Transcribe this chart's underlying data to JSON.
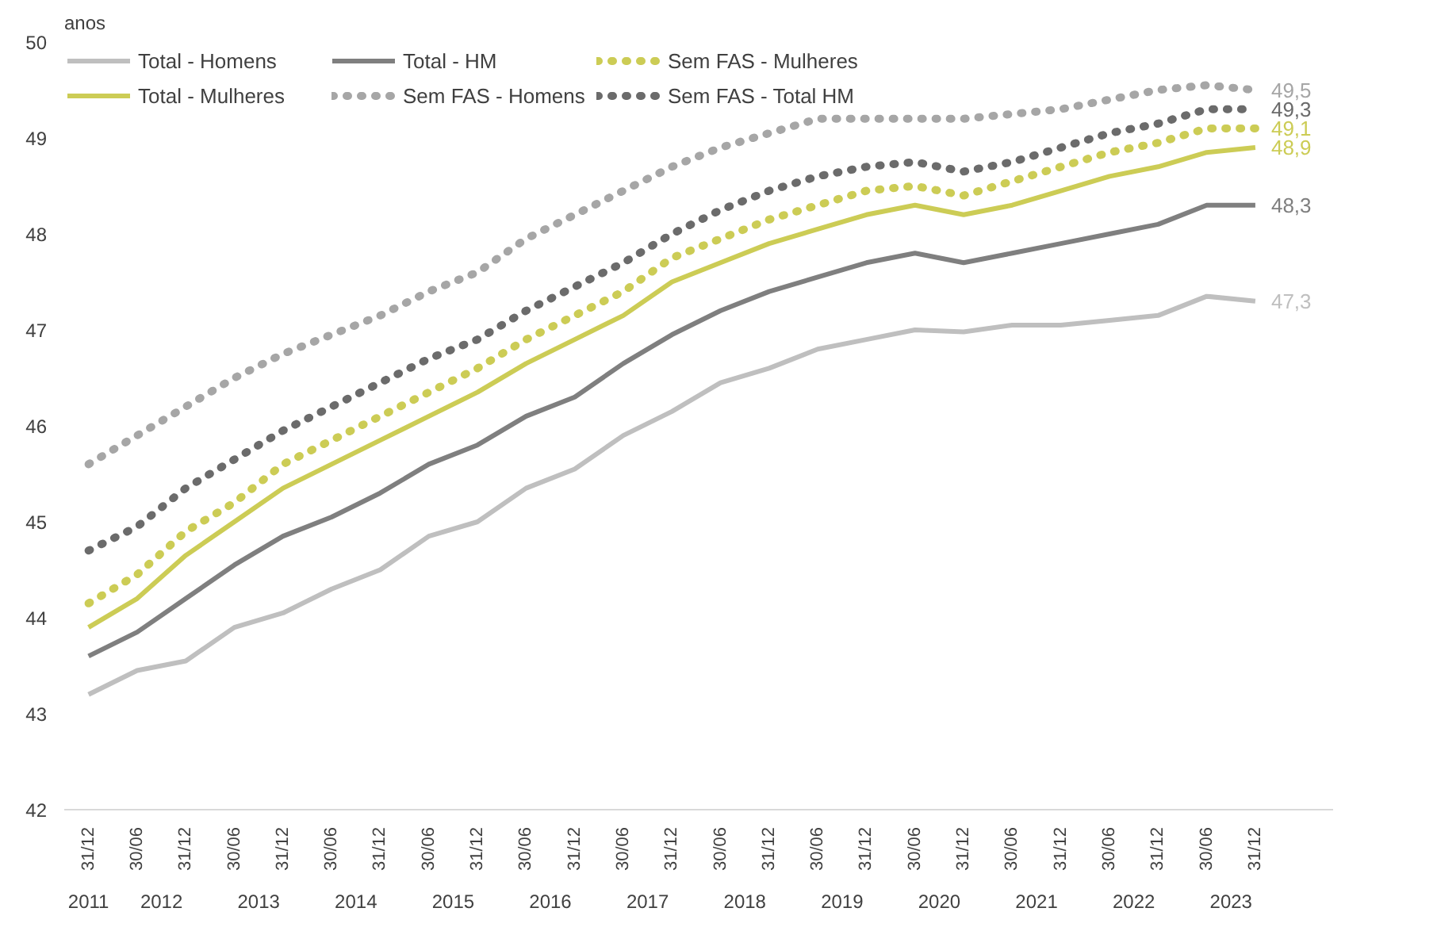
{
  "chart_data": {
    "type": "line",
    "ylabel": "anos",
    "categories": [
      "31/12",
      "30/06",
      "31/12",
      "30/06",
      "31/12",
      "30/06",
      "31/12",
      "30/06",
      "31/12",
      "30/06",
      "31/12",
      "30/06",
      "31/12",
      "30/06",
      "31/12",
      "30/06",
      "31/12",
      "30/06",
      "31/12",
      "30/06",
      "31/12",
      "30/06",
      "31/12",
      "30/06",
      "31/12"
    ],
    "annotations": [
      "2011",
      "2012",
      "2013",
      "2014",
      "2015",
      "2016",
      "2017",
      "2018",
      "2019",
      "2020",
      "2021",
      "2022",
      "2023"
    ],
    "ylim": [
      42,
      50
    ],
    "yticks": [
      42,
      43,
      44,
      45,
      46,
      47,
      48,
      49,
      50
    ],
    "grid": false,
    "legend": "top",
    "marker": "none",
    "series": [
      {
        "name": "Total - Homens",
        "color": "#bfbfbf",
        "line_style": "solid",
        "values": [
          43.2,
          43.45,
          43.55,
          43.9,
          44.05,
          44.3,
          44.5,
          44.85,
          45.0,
          45.35,
          45.55,
          45.9,
          46.15,
          46.45,
          46.6,
          46.8,
          46.9,
          47.0,
          46.98,
          47.05,
          47.05,
          47.1,
          47.15,
          47.35,
          47.3
        ],
        "value_labels": [
          null,
          null,
          null,
          null,
          null,
          null,
          null,
          null,
          null,
          null,
          null,
          null,
          null,
          null,
          null,
          null,
          null,
          null,
          null,
          null,
          null,
          null,
          null,
          null,
          "47,3"
        ]
      },
      {
        "name": "Total - Mulheres",
        "color": "#cccc55",
        "line_style": "solid",
        "values": [
          43.9,
          44.2,
          44.65,
          45.0,
          45.35,
          45.6,
          45.85,
          46.1,
          46.35,
          46.65,
          46.9,
          47.15,
          47.5,
          47.7,
          47.9,
          48.05,
          48.2,
          48.3,
          48.2,
          48.3,
          48.45,
          48.6,
          48.7,
          48.85,
          48.9
        ],
        "value_labels": [
          null,
          null,
          null,
          null,
          null,
          null,
          null,
          null,
          null,
          null,
          null,
          null,
          null,
          null,
          null,
          null,
          null,
          null,
          null,
          null,
          null,
          null,
          null,
          null,
          "48,9"
        ]
      },
      {
        "name": "Total - HM",
        "color": "#7f7f7f",
        "line_style": "solid",
        "values": [
          43.6,
          43.85,
          44.2,
          44.55,
          44.85,
          45.05,
          45.3,
          45.6,
          45.8,
          46.1,
          46.3,
          46.65,
          46.95,
          47.2,
          47.4,
          47.55,
          47.7,
          47.8,
          47.7,
          47.8,
          47.9,
          48.0,
          48.1,
          48.3,
          48.3
        ],
        "value_labels": [
          null,
          null,
          null,
          null,
          null,
          null,
          null,
          null,
          null,
          null,
          null,
          null,
          null,
          null,
          null,
          null,
          null,
          null,
          null,
          null,
          null,
          null,
          null,
          null,
          "48,3"
        ]
      },
      {
        "name": "Sem FAS - Homens",
        "color": "#a6a6a6",
        "line_style": "dotted",
        "values": [
          45.6,
          45.9,
          46.2,
          46.5,
          46.75,
          46.95,
          47.15,
          47.4,
          47.6,
          47.95,
          48.2,
          48.45,
          48.7,
          48.9,
          49.05,
          49.2,
          49.2,
          49.2,
          49.2,
          49.25,
          49.3,
          49.4,
          49.5,
          49.55,
          49.5
        ],
        "value_labels": [
          null,
          null,
          null,
          null,
          null,
          null,
          null,
          null,
          null,
          null,
          null,
          null,
          null,
          null,
          null,
          null,
          null,
          null,
          null,
          null,
          null,
          null,
          null,
          null,
          "49,5"
        ]
      },
      {
        "name": "Sem FAS - Mulheres",
        "color": "#cccc55",
        "line_style": "dotted",
        "values": [
          44.15,
          44.45,
          44.9,
          45.2,
          45.6,
          45.85,
          46.1,
          46.35,
          46.6,
          46.9,
          47.15,
          47.4,
          47.75,
          47.95,
          48.15,
          48.3,
          48.45,
          48.5,
          48.4,
          48.55,
          48.7,
          48.85,
          48.95,
          49.1,
          49.1
        ],
        "value_labels": [
          null,
          null,
          null,
          null,
          null,
          null,
          null,
          null,
          null,
          null,
          null,
          null,
          null,
          null,
          null,
          null,
          null,
          null,
          null,
          null,
          null,
          null,
          null,
          null,
          "49,1"
        ]
      },
      {
        "name": "Sem FAS - Total HM",
        "color": "#6b6b6b",
        "line_style": "dotted",
        "values": [
          44.7,
          44.95,
          45.35,
          45.65,
          45.95,
          46.2,
          46.45,
          46.7,
          46.9,
          47.2,
          47.45,
          47.7,
          48.0,
          48.25,
          48.45,
          48.6,
          48.7,
          48.75,
          48.65,
          48.75,
          48.9,
          49.05,
          49.15,
          49.3,
          49.3
        ],
        "value_labels": [
          null,
          null,
          null,
          null,
          null,
          null,
          null,
          null,
          null,
          null,
          null,
          null,
          null,
          null,
          null,
          null,
          null,
          null,
          null,
          null,
          null,
          null,
          null,
          null,
          "49,3"
        ]
      }
    ]
  }
}
